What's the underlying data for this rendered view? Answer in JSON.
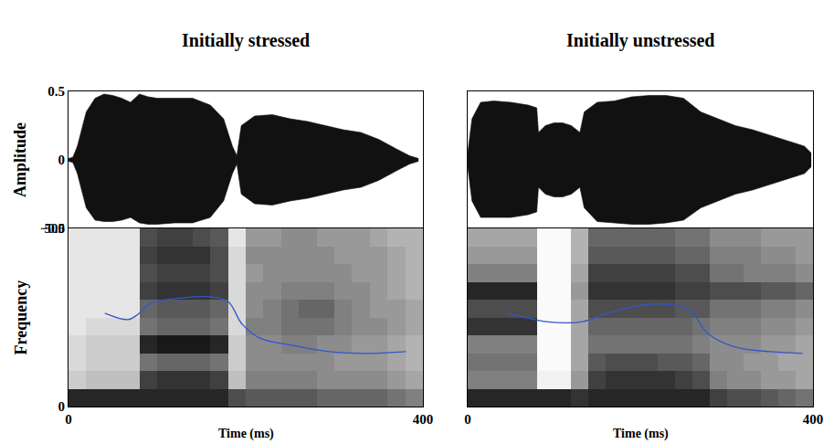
{
  "chart_data": [
    {
      "type": "area",
      "title": "Initially stressed",
      "ylabel": "Amplitude",
      "xlim": [
        0,
        400
      ],
      "ylim": [
        -0.5,
        0.5
      ],
      "yticks": [
        0.5,
        0,
        {
          "value": -0.5,
          "label": "−0.5"
        }
      ],
      "tick_labels": "y",
      "x": [
        0,
        5,
        10,
        20,
        30,
        40,
        50,
        60,
        70,
        80,
        90,
        100,
        120,
        140,
        160,
        175,
        185,
        190,
        195,
        210,
        230,
        250,
        270,
        290,
        310,
        330,
        350,
        370,
        385,
        395
      ],
      "series": [
        {
          "color": "#111111",
          "values": [
            -0.01,
            -0.02,
            -0.1,
            -0.35,
            -0.44,
            -0.45,
            -0.45,
            -0.44,
            -0.42,
            -0.46,
            -0.47,
            -0.47,
            -0.46,
            -0.46,
            -0.42,
            -0.3,
            -0.1,
            -0.03,
            -0.25,
            -0.32,
            -0.33,
            -0.3,
            -0.28,
            -0.25,
            -0.22,
            -0.2,
            -0.15,
            -0.08,
            -0.03,
            -0.01
          ]
        },
        {
          "color": "#111111",
          "values": [
            0.01,
            0.02,
            0.1,
            0.35,
            0.45,
            0.48,
            0.47,
            0.45,
            0.42,
            0.48,
            0.46,
            0.45,
            0.45,
            0.45,
            0.4,
            0.3,
            0.1,
            0.03,
            0.25,
            0.32,
            0.33,
            0.3,
            0.28,
            0.25,
            0.22,
            0.2,
            0.15,
            0.08,
            0.03,
            0.01
          ]
        }
      ]
    },
    {
      "type": "heatmap",
      "xlabel": "Time (ms)",
      "ylabel": "Frequency",
      "xlim": [
        0,
        400
      ],
      "ylim": [
        0,
        500
      ],
      "xticks": [
        0,
        400
      ],
      "yticks": [
        0,
        500
      ],
      "tick_labels": true,
      "zlim": [
        0,
        1
      ],
      "x": [
        10,
        30,
        50,
        70,
        90,
        110,
        130,
        150,
        170,
        190,
        210,
        230,
        250,
        270,
        290,
        310,
        330,
        350,
        370,
        390
      ],
      "y": [
        25,
        75,
        125,
        175,
        225,
        275,
        325,
        375,
        425,
        475
      ],
      "cells": [
        [
          0.85,
          0.85,
          0.85,
          0.85,
          0.85,
          0.85,
          0.85,
          0.85,
          0.85,
          0.7,
          0.65,
          0.65,
          0.65,
          0.65,
          0.6,
          0.6,
          0.6,
          0.6,
          0.55,
          0.5
        ],
        [
          0.2,
          0.25,
          0.25,
          0.25,
          0.75,
          0.8,
          0.8,
          0.8,
          0.75,
          0.25,
          0.5,
          0.5,
          0.5,
          0.5,
          0.45,
          0.45,
          0.45,
          0.45,
          0.4,
          0.35
        ],
        [
          0.15,
          0.2,
          0.2,
          0.2,
          0.55,
          0.6,
          0.6,
          0.6,
          0.55,
          0.2,
          0.45,
          0.45,
          0.45,
          0.45,
          0.45,
          0.4,
          0.4,
          0.4,
          0.35,
          0.3
        ],
        [
          0.15,
          0.2,
          0.2,
          0.2,
          0.85,
          0.9,
          0.9,
          0.9,
          0.85,
          0.2,
          0.45,
          0.45,
          0.5,
          0.5,
          0.45,
          0.45,
          0.4,
          0.4,
          0.35,
          0.3
        ],
        [
          0.1,
          0.15,
          0.15,
          0.15,
          0.55,
          0.6,
          0.6,
          0.6,
          0.55,
          0.15,
          0.5,
          0.5,
          0.55,
          0.55,
          0.55,
          0.5,
          0.45,
          0.45,
          0.4,
          0.35
        ],
        [
          0.1,
          0.1,
          0.1,
          0.1,
          0.6,
          0.65,
          0.65,
          0.65,
          0.6,
          0.15,
          0.45,
          0.5,
          0.55,
          0.6,
          0.6,
          0.5,
          0.45,
          0.4,
          0.4,
          0.35
        ],
        [
          0.1,
          0.1,
          0.1,
          0.1,
          0.75,
          0.8,
          0.8,
          0.8,
          0.75,
          0.15,
          0.45,
          0.45,
          0.5,
          0.5,
          0.5,
          0.45,
          0.45,
          0.4,
          0.35,
          0.3
        ],
        [
          0.1,
          0.1,
          0.1,
          0.1,
          0.7,
          0.75,
          0.75,
          0.75,
          0.7,
          0.15,
          0.4,
          0.45,
          0.45,
          0.45,
          0.45,
          0.45,
          0.4,
          0.4,
          0.35,
          0.3
        ],
        [
          0.1,
          0.1,
          0.1,
          0.1,
          0.75,
          0.8,
          0.8,
          0.8,
          0.7,
          0.15,
          0.45,
          0.45,
          0.45,
          0.45,
          0.45,
          0.4,
          0.4,
          0.4,
          0.35,
          0.3
        ],
        [
          0.1,
          0.1,
          0.1,
          0.1,
          0.7,
          0.75,
          0.75,
          0.7,
          0.65,
          0.1,
          0.4,
          0.4,
          0.45,
          0.45,
          0.4,
          0.4,
          0.4,
          0.35,
          0.3,
          0.3
        ]
      ],
      "series": [
        {
          "type": "line",
          "color": "#3355cc",
          "x": [
            41,
            67,
            77,
            93,
            129,
            160,
            180,
            196,
            216,
            252,
            294,
            335,
            381
          ],
          "values": [
            262,
            244,
            256,
            290,
            305,
            308,
            295,
            231,
            192,
            172,
            154,
            149,
            154
          ]
        }
      ]
    },
    {
      "type": "area",
      "title": "Initially unstressed",
      "xlim": [
        0,
        400
      ],
      "ylim": [
        -0.5,
        0.5
      ],
      "tick_labels": false,
      "x": [
        0,
        5,
        15,
        30,
        50,
        70,
        80,
        82,
        90,
        100,
        110,
        120,
        130,
        135,
        150,
        170,
        190,
        210,
        230,
        250,
        270,
        290,
        310,
        330,
        350,
        370,
        390,
        398
      ],
      "series": [
        {
          "color": "#111111",
          "values": [
            -0.05,
            -0.3,
            -0.42,
            -0.42,
            -0.42,
            -0.4,
            -0.38,
            -0.2,
            -0.25,
            -0.27,
            -0.27,
            -0.25,
            -0.2,
            -0.35,
            -0.45,
            -0.46,
            -0.47,
            -0.47,
            -0.46,
            -0.44,
            -0.35,
            -0.3,
            -0.25,
            -0.22,
            -0.18,
            -0.14,
            -0.1,
            -0.05
          ]
        },
        {
          "color": "#111111",
          "values": [
            0.05,
            0.3,
            0.42,
            0.43,
            0.42,
            0.4,
            0.38,
            0.2,
            0.25,
            0.27,
            0.27,
            0.25,
            0.2,
            0.35,
            0.42,
            0.43,
            0.46,
            0.47,
            0.47,
            0.45,
            0.35,
            0.3,
            0.25,
            0.22,
            0.18,
            0.14,
            0.1,
            0.05
          ]
        }
      ]
    },
    {
      "type": "heatmap",
      "xlabel": "Time (ms)",
      "xlim": [
        0,
        400
      ],
      "ylim": [
        0,
        500
      ],
      "xticks": [
        0,
        400
      ],
      "tick_labels": "x",
      "zlim": [
        0,
        1
      ],
      "x": [
        10,
        30,
        50,
        70,
        90,
        110,
        130,
        150,
        170,
        190,
        210,
        230,
        250,
        270,
        290,
        310,
        330,
        350,
        370,
        390
      ],
      "y": [
        25,
        75,
        125,
        175,
        225,
        275,
        325,
        375,
        425,
        475
      ],
      "cells": [
        [
          0.85,
          0.85,
          0.85,
          0.85,
          0.85,
          0.85,
          0.8,
          0.85,
          0.85,
          0.85,
          0.85,
          0.85,
          0.85,
          0.85,
          0.75,
          0.7,
          0.7,
          0.65,
          0.6,
          0.55
        ],
        [
          0.5,
          0.5,
          0.5,
          0.5,
          0.05,
          0.05,
          0.4,
          0.75,
          0.8,
          0.8,
          0.8,
          0.8,
          0.75,
          0.7,
          0.5,
          0.45,
          0.45,
          0.4,
          0.4,
          0.35
        ],
        [
          0.55,
          0.55,
          0.55,
          0.55,
          0.02,
          0.02,
          0.35,
          0.65,
          0.7,
          0.7,
          0.7,
          0.65,
          0.65,
          0.6,
          0.45,
          0.45,
          0.4,
          0.4,
          0.35,
          0.35
        ],
        [
          0.5,
          0.5,
          0.5,
          0.5,
          0.02,
          0.02,
          0.35,
          0.55,
          0.55,
          0.55,
          0.55,
          0.55,
          0.55,
          0.5,
          0.45,
          0.45,
          0.45,
          0.4,
          0.4,
          0.35
        ],
        [
          0.8,
          0.8,
          0.8,
          0.8,
          0.02,
          0.02,
          0.35,
          0.6,
          0.6,
          0.6,
          0.6,
          0.6,
          0.6,
          0.55,
          0.5,
          0.5,
          0.5,
          0.45,
          0.45,
          0.4
        ],
        [
          0.7,
          0.7,
          0.7,
          0.7,
          0.02,
          0.02,
          0.35,
          0.7,
          0.7,
          0.7,
          0.7,
          0.7,
          0.65,
          0.65,
          0.55,
          0.55,
          0.55,
          0.5,
          0.5,
          0.45
        ],
        [
          0.85,
          0.85,
          0.85,
          0.85,
          0.02,
          0.02,
          0.4,
          0.8,
          0.8,
          0.8,
          0.8,
          0.8,
          0.75,
          0.75,
          0.7,
          0.7,
          0.7,
          0.65,
          0.65,
          0.6
        ],
        [
          0.5,
          0.5,
          0.5,
          0.5,
          0.02,
          0.02,
          0.35,
          0.75,
          0.75,
          0.75,
          0.75,
          0.75,
          0.7,
          0.7,
          0.55,
          0.55,
          0.5,
          0.5,
          0.5,
          0.45
        ],
        [
          0.4,
          0.4,
          0.4,
          0.4,
          0.02,
          0.02,
          0.3,
          0.65,
          0.65,
          0.65,
          0.65,
          0.65,
          0.6,
          0.6,
          0.5,
          0.5,
          0.5,
          0.45,
          0.45,
          0.4
        ],
        [
          0.35,
          0.35,
          0.35,
          0.35,
          0.02,
          0.02,
          0.3,
          0.6,
          0.6,
          0.6,
          0.6,
          0.6,
          0.55,
          0.55,
          0.45,
          0.45,
          0.45,
          0.4,
          0.4,
          0.4
        ]
      ],
      "series": [
        {
          "type": "line",
          "color": "#3355cc",
          "x": [
            45,
            65,
            91,
            133,
            154,
            195,
            232,
            258,
            278,
            310,
            351,
            388
          ],
          "values": [
            262,
            251,
            238,
            238,
            256,
            282,
            287,
            269,
            205,
            167,
            154,
            149
          ]
        }
      ]
    }
  ]
}
